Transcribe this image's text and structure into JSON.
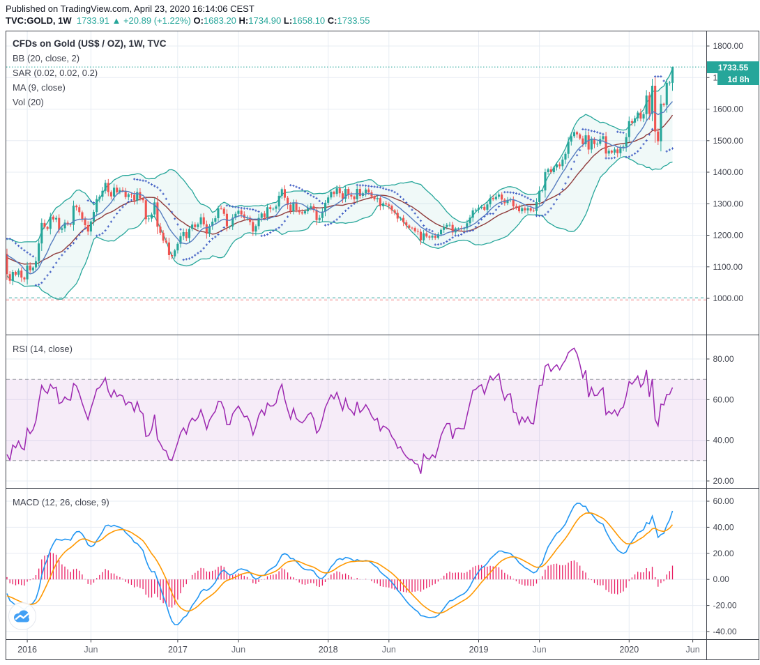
{
  "header": {
    "published": "Published on TradingView.com, April 23, 2020 16:14:06 CEST",
    "symbol": "TVC:GOLD, 1W",
    "last_price": "1733.91",
    "arrow": "▲",
    "change": "+20.89 (+1.22%)",
    "o_label": "O:",
    "o_value": "1683.20",
    "h_label": "H:",
    "h_value": "1734.90",
    "l_label": "L:",
    "l_value": "1658.10",
    "c_label": "C:",
    "c_value": "1733.55"
  },
  "main_pane": {
    "title": "CFDs on Gold (US$ / OZ), 1W, TVC",
    "indicator_labels": [
      "BB (20, close, 2)",
      "SAR (0.02, 0.02, 0.2)",
      "MA (9, close)",
      "Vol (20)"
    ]
  },
  "rsi_pane": {
    "label": "RSI (14, close)"
  },
  "macd_pane": {
    "label": "MACD (12, 26, close, 9)"
  },
  "price_axis": {
    "ticks": [
      1800,
      1700,
      1600,
      1500,
      1400,
      1300,
      1200,
      1100,
      1000
    ],
    "badge": "1733.55",
    "countdown": "1d 8h"
  },
  "rsi_axis": {
    "ticks": [
      80,
      60,
      40,
      20
    ]
  },
  "macd_axis": {
    "ticks": [
      60,
      40,
      20,
      0,
      -20,
      -40
    ]
  },
  "time_axis": {
    "ticks": [
      {
        "label": "2016",
        "bar": 7,
        "major": true
      },
      {
        "label": "Jun",
        "bar": 29,
        "major": false
      },
      {
        "label": "2017",
        "bar": 59,
        "major": true
      },
      {
        "label": "Jun",
        "bar": 80,
        "major": false
      },
      {
        "label": "2018",
        "bar": 111,
        "major": true
      },
      {
        "label": "Jun",
        "bar": 132,
        "major": false
      },
      {
        "label": "2019",
        "bar": 163,
        "major": true
      },
      {
        "label": "Jun",
        "bar": 184,
        "major": false
      },
      {
        "label": "2020",
        "bar": 215,
        "major": true
      },
      {
        "label": "Jun",
        "bar": 237,
        "major": false
      }
    ]
  },
  "levels": {
    "current_price_line": 1733.55,
    "dashed_low_red": 995,
    "dashed_low_teal": 1002,
    "rsi_upper": 70,
    "rsi_lower": 30
  },
  "colors": {
    "up": "#26a69a",
    "down": "#ef5350",
    "bb_band": "#26a69a",
    "bb_fill": "rgba(38,166,154,0.07)",
    "bb_basis": "#8f3b3b",
    "ma9": "#567dbf",
    "sar": "#415ec4",
    "rsi_line": "#9c27b0",
    "rsi_fill": "rgba(156,39,176,0.09)",
    "rsi_dash": "#9a9da6",
    "macd_line": "#2196f3",
    "macd_signal": "#ff9800",
    "macd_hist": "#e91e63",
    "grid": "#e7ecf3",
    "frame": "#3a3e46",
    "axis_text": "#434650",
    "month_text": "#6b6f79",
    "price_line_teal": "#26a69a",
    "dash_red": "#f08080",
    "dash_teal": "#4db6ac"
  },
  "chart_data": {
    "type": "candlestick",
    "symbol": "TVC:GOLD",
    "interval": "1W",
    "title": "CFDs on Gold (US$ / OZ), 1W, TVC",
    "y_axis_ranges": {
      "main": [
        1000,
        1800
      ],
      "rsi": [
        20,
        80
      ],
      "macd": [
        -40,
        60
      ]
    },
    "indicators": {
      "bb": {
        "length": 20,
        "mult": 2
      },
      "sar": {
        "start": 0.02,
        "inc": 0.02,
        "max": 0.2
      },
      "ma": {
        "length": 9
      },
      "rsi": {
        "length": 14,
        "upper": 70,
        "lower": 30
      },
      "macd": {
        "fast": 12,
        "slow": 26,
        "signal": 9
      }
    },
    "preroll_closes": [
      1201,
      1199,
      1189,
      1186,
      1192,
      1172,
      1168,
      1163,
      1158,
      1168,
      1134,
      1131,
      1104,
      1094,
      1086,
      1094,
      1118,
      1108,
      1112,
      1134,
      1139,
      1156,
      1138,
      1166,
      1177,
      1141
    ],
    "closes": [
      1077,
      1056,
      1084,
      1075,
      1088,
      1066,
      1060,
      1104,
      1089,
      1098,
      1118,
      1174,
      1239,
      1226,
      1220,
      1259,
      1250,
      1255,
      1217,
      1222,
      1240,
      1234,
      1233,
      1294,
      1289,
      1273,
      1252,
      1232,
      1212,
      1244,
      1274,
      1315,
      1322,
      1341,
      1366,
      1337,
      1323,
      1351,
      1336,
      1343,
      1340,
      1321,
      1330,
      1328,
      1310,
      1337,
      1317,
      1311,
      1251,
      1253,
      1266,
      1304,
      1227,
      1208,
      1183,
      1177,
      1137,
      1133,
      1152,
      1173,
      1197,
      1210,
      1191,
      1220,
      1234,
      1226,
      1235,
      1257,
      1235,
      1205,
      1229,
      1243,
      1254,
      1285,
      1284,
      1268,
      1228,
      1228,
      1256,
      1268,
      1278,
      1266,
      1254,
      1256,
      1242,
      1212,
      1229,
      1255,
      1269,
      1258,
      1289,
      1283,
      1284,
      1291,
      1325,
      1346,
      1319,
      1297,
      1276,
      1304,
      1280,
      1273,
      1269,
      1276,
      1287,
      1292,
      1280,
      1248,
      1255,
      1275,
      1303,
      1320,
      1338,
      1331,
      1349,
      1333,
      1316,
      1347,
      1328,
      1323,
      1314,
      1347,
      1325,
      1333,
      1345,
      1336,
      1323,
      1314,
      1318,
      1292,
      1301,
      1298,
      1293,
      1279,
      1271,
      1253,
      1255,
      1241,
      1231,
      1224,
      1223,
      1213,
      1211,
      1184,
      1206,
      1196,
      1193,
      1198,
      1192,
      1203,
      1217,
      1226,
      1233,
      1233,
      1209,
      1222,
      1223,
      1222,
      1222,
      1238,
      1256,
      1279,
      1281,
      1287,
      1290,
      1281,
      1298,
      1318,
      1314,
      1322,
      1329,
      1313,
      1302,
      1312,
      1313,
      1292,
      1291,
      1276,
      1286,
      1279,
      1286,
      1278,
      1277,
      1305,
      1341,
      1342,
      1400,
      1409,
      1400,
      1415,
      1425,
      1419,
      1440,
      1458,
      1497,
      1514,
      1527,
      1520,
      1507,
      1489,
      1517,
      1472,
      1505,
      1489,
      1490,
      1505,
      1514,
      1459,
      1468,
      1462,
      1472,
      1460,
      1476,
      1481,
      1511,
      1562,
      1557,
      1571,
      1589,
      1570,
      1584,
      1643,
      1585,
      1674,
      1529,
      1498,
      1617,
      1613,
      1683,
      1684,
      1733.55
    ],
    "last_bar": {
      "open": 1683.2,
      "high": 1734.9,
      "low": 1658.1,
      "close": 1733.55
    }
  },
  "logo": {
    "name": "tradingview-cloud-logo"
  }
}
